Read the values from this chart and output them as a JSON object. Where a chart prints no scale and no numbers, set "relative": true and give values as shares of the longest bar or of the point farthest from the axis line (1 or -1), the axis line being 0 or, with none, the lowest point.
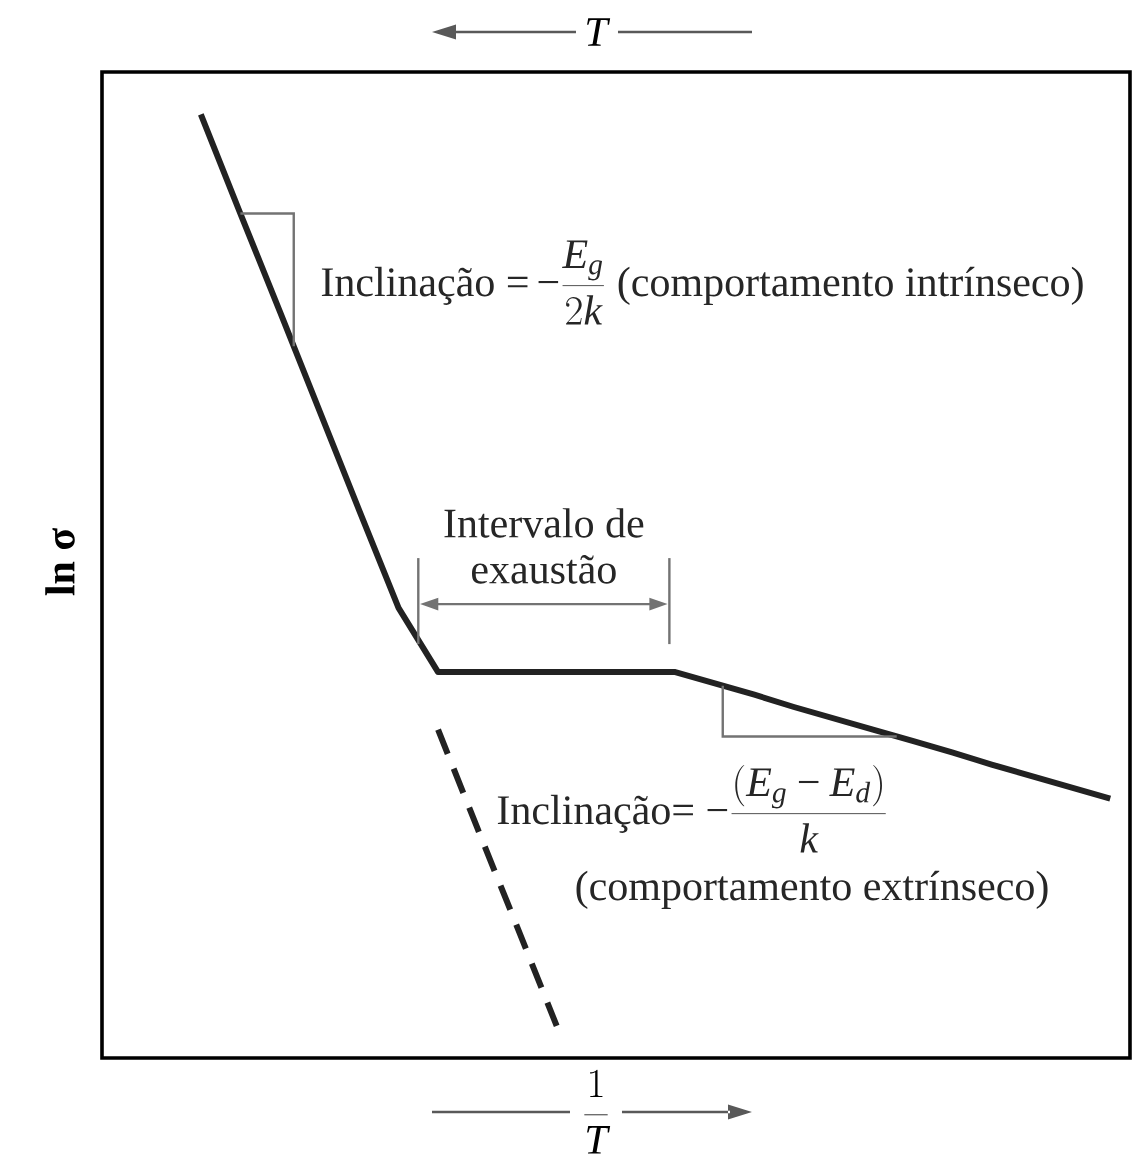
{
  "chart_data": {
    "type": "line",
    "relative": true,
    "marker": "none",
    "xlabel": "\\frac{1}{T}",
    "x2label": "T",
    "ylabel": "ln σ",
    "categories": [
      null,
      null,
      null,
      null,
      null,
      null,
      null,
      null,
      null,
      null,
      null,
      null,
      null,
      null,
      null,
      null,
      null,
      null,
      null,
      null,
      null,
      null,
      null,
      null,
      null,
      null
    ],
    "series": [
      {
        "color": "#222222",
        "line_style": "solid",
        "values": [
          null,
          null,
          1.0,
          0.895,
          0.791,
          0.686,
          0.581,
          0.477,
          0.409,
          0.409,
          0.409,
          0.409,
          0.409,
          0.409,
          0.409,
          0.397,
          0.385,
          0.372,
          0.36,
          0.348,
          0.336,
          0.324,
          0.311,
          0.299,
          0.287,
          0.275
        ]
      },
      {
        "color": "#222222",
        "line_style": "dashed",
        "values": [
          null,
          null,
          null,
          null,
          null,
          null,
          null,
          null,
          0.348,
          0.243,
          0.139,
          0.034,
          null,
          null,
          null,
          null,
          null,
          null,
          null,
          null,
          null,
          null,
          null,
          null,
          null,
          null
        ]
      }
    ],
    "annotations": [
      "Inclinação =",
      "−\\frac{E_{g}}{2k}",
      "(comportamento intrínseco)",
      "Intervalo de exaustão",
      "Inclinação=",
      "−\\frac{(E_{g}\\mathbin{−}E_{d})}{k}",
      "(comportamento extrínseco)"
    ]
  }
}
